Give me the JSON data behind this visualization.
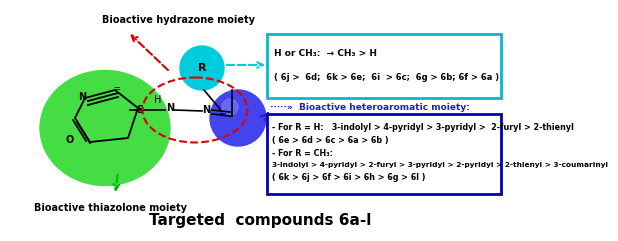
{
  "title": "Targeted  compounds 6a-l",
  "title_fontsize": 11,
  "bg_color": "#ffffff",
  "hydrazone_label": "Bioactive hydrazone moiety",
  "thiazolone_label": "Bioactive thiazolone moiety",
  "box1_text_line1": "H or CH₃:  → CH₃ > H",
  "box1_text_line2": "( 6j >  6d;  6k > 6e;  6i  > 6c;  6g > 6b; 6f > 6a )",
  "box2_title": "·····»  Bioactive heteroaromatic moiety:",
  "box2_line1": "- For R = H:   3-indolyl > 4-pyridyl > 3-pyridyl >  2-furyl > 2-thienyl",
  "box2_line2": "( 6e > 6d > 6c > 6a > 6b )",
  "box2_line3": "- For R = CH₃:",
  "box2_line4": "3-indolyl > 4-pyridyl > 2-furyl > 3-pyridyl > 2-pyridyl > 2-thienyl > 3-coumarinyl",
  "box2_line5": "( 6k > 6j > 6f > 6i > 6h > 6g > 6l )",
  "green_color": "#44dd44",
  "cyan_color": "#00ccdd",
  "blue_color": "#2222bb",
  "blue_ball_color": "#4444ee",
  "red_color": "#dd0000",
  "green_arrow_color": "#00bb00",
  "box1_border_color": "#00bbcc",
  "box2_border_color": "#0000bb"
}
